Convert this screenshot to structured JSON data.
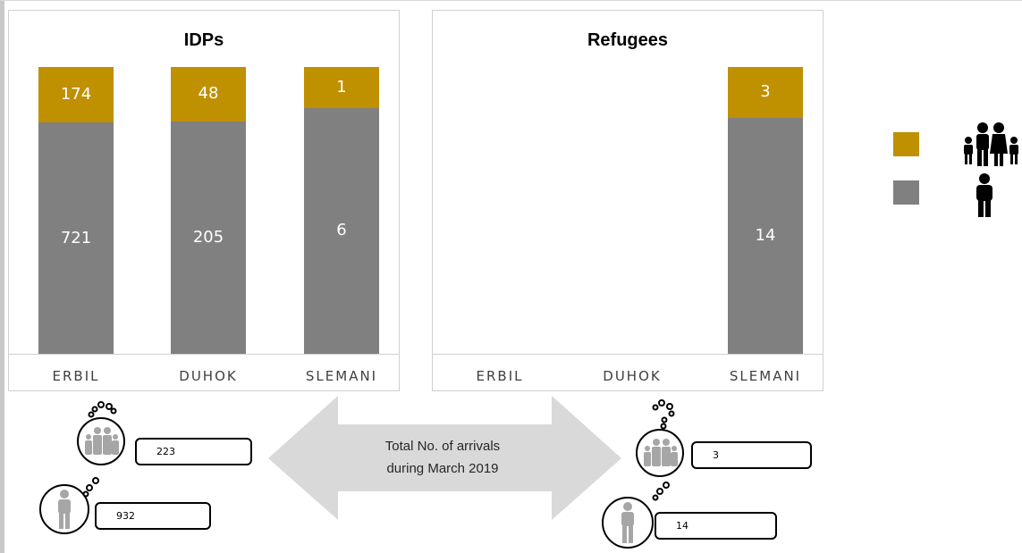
{
  "chart_data": [
    {
      "type": "bar",
      "stacked": true,
      "title": "IDPs",
      "categories": [
        "ERBIL",
        "DUHOK",
        "SLEMANI"
      ],
      "series": [
        {
          "values": [
            721,
            205,
            6
          ],
          "color": "#808080"
        },
        {
          "values": [
            174,
            48,
            1
          ],
          "color": "#bf9000"
        }
      ]
    },
    {
      "type": "bar",
      "stacked": true,
      "title": "Refugees",
      "categories": [
        "ERBIL",
        "DUHOK",
        "SLEMANI"
      ],
      "series": [
        {
          "values": [
            null,
            null,
            14
          ],
          "color": "#808080"
        },
        {
          "values": [
            null,
            null,
            3
          ],
          "color": "#bf9000"
        }
      ]
    }
  ],
  "legend": [
    {
      "color": "#bf9000",
      "icon": "family-icon"
    },
    {
      "color": "#808080",
      "icon": "person-icon"
    }
  ],
  "arrow": {
    "text_line1": "Total No. of arrivals",
    "text_line2": "during March 2019"
  },
  "totals": {
    "idp_families": "223",
    "idp_individuals": "932",
    "refugee_families": "3",
    "refugee_individuals": "14"
  }
}
